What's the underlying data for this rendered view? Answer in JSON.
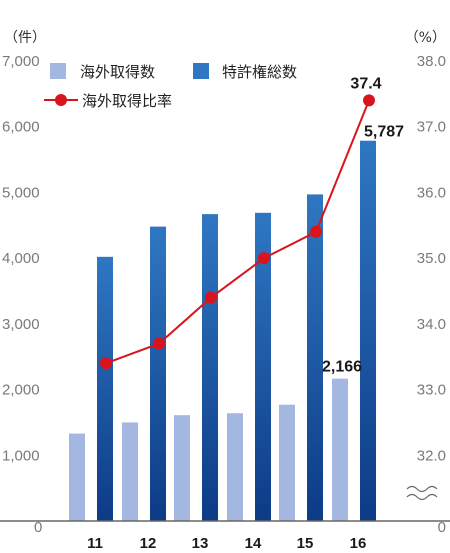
{
  "units": {
    "left": "（件）",
    "right": "（%）"
  },
  "legend": {
    "overseas": "海外取得数",
    "total": "特許権総数",
    "ratio": "海外取得比率"
  },
  "colors": {
    "overseas": "#a3b7e0",
    "total_top": "#2f77c2",
    "total_bottom": "#0d3b86",
    "ratio": "#d9141c",
    "axis": "#666666"
  },
  "chart_data": {
    "type": "bar",
    "categories": [
      "11",
      "12",
      "13",
      "14",
      "15",
      "16"
    ],
    "series": [
      {
        "name": "海外取得数",
        "values": [
          1330,
          1500,
          1610,
          1640,
          1770,
          2166
        ]
      },
      {
        "name": "特許権総数",
        "values": [
          4020,
          4480,
          4670,
          4690,
          4970,
          5787
        ]
      },
      {
        "name": "海外取得比率",
        "type": "line",
        "axis": "right",
        "values": [
          33.4,
          33.7,
          34.4,
          35.0,
          35.4,
          37.4
        ]
      }
    ],
    "ylim": [
      0,
      7000
    ],
    "y_ticks": [
      "0",
      "1,000",
      "2,000",
      "3,000",
      "4,000",
      "5,000",
      "6,000",
      "7,000"
    ],
    "y2_visible_range": [
      32.0,
      38.0
    ],
    "y2_ticks": [
      "0",
      "32.0",
      "33.0",
      "34.0",
      "35.0",
      "36.0",
      "37.0",
      "38.0"
    ],
    "y2_axis_break": true,
    "data_labels": {
      "overseas_16": "2,166",
      "total_16": "5,787",
      "ratio_16": "37.4"
    },
    "grid": false,
    "legend_position": "top-left"
  }
}
